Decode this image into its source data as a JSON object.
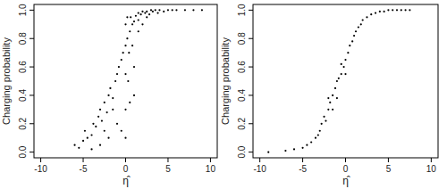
{
  "chart_data": [
    {
      "type": "scatter",
      "x_label": "η̂",
      "y_label": "Charging probability",
      "color": "#000000",
      "x": [
        -6,
        -5.5,
        -5,
        -4.8,
        -4.5,
        -4,
        -3.8,
        -3.5,
        -3.2,
        -3,
        -2.8,
        -2.5,
        -2.2,
        -2,
        -1.8,
        -1.5,
        -1.2,
        -1,
        -0.8,
        -0.5,
        -0.3,
        0,
        0,
        0,
        0.2,
        0.3,
        0.5,
        0.6,
        0.8,
        1,
        1,
        1.2,
        1.5,
        1.5,
        1.8,
        2,
        2,
        2.3,
        2.5,
        2.8,
        3,
        3.2,
        3.5,
        3.8,
        4,
        4.5,
        5,
        5.5,
        6,
        7,
        8,
        9,
        -1,
        -0.5,
        0,
        0,
        0.5,
        1,
        -2,
        -3,
        -1.5,
        0.2,
        0.4,
        0.8,
        1.5,
        2.5,
        -4,
        -2.5
      ],
      "values": [
        0.05,
        0.03,
        0.08,
        0.15,
        0.1,
        0.12,
        0.2,
        0.18,
        0.25,
        0.3,
        0.22,
        0.35,
        0.28,
        0.4,
        0.45,
        0.38,
        0.5,
        0.55,
        0.6,
        0.65,
        0.7,
        0.3,
        0.75,
        0.9,
        0.8,
        0.5,
        0.85,
        0.95,
        0.9,
        0.92,
        0.6,
        0.96,
        0.98,
        0.85,
        0.97,
        0.99,
        0.9,
        0.98,
        0.99,
        0.97,
        1,
        0.99,
        1,
        0.98,
        1,
        0.99,
        1,
        1,
        1,
        1,
        1,
        1,
        0.2,
        0.15,
        0.1,
        0.55,
        0.35,
        0.4,
        0.1,
        0.05,
        0.3,
        0.95,
        0.7,
        0.75,
        0.93,
        0.95,
        0.02,
        0.15
      ],
      "xlim": [
        -10.8,
        10.8
      ],
      "ylim": [
        -0.04,
        1.04
      ],
      "xticks": [
        -10,
        -5,
        0,
        5,
        10
      ],
      "yticks": [
        {
          "value": 0,
          "label": "0.0"
        },
        0.2,
        0.4,
        0.6,
        0.8,
        {
          "value": 1,
          "label": "1.0"
        }
      ]
    },
    {
      "type": "scatter",
      "x_label": "η̂",
      "y_label": "Charging probability",
      "color": "#000000",
      "x": [
        -9,
        -7,
        -6,
        -5,
        -4.5,
        -4,
        -3.5,
        -3.2,
        -3,
        -2.8,
        -2.5,
        -2.3,
        -2,
        -2,
        -1.8,
        -1.5,
        -1.5,
        -1.2,
        -1,
        -1,
        -0.8,
        -0.5,
        -0.5,
        -0.2,
        0,
        0,
        0.3,
        0.5,
        0.8,
        1,
        1.2,
        1.5,
        1.8,
        2,
        2.5,
        3,
        3.5,
        4,
        4.5,
        5,
        5.5,
        6,
        6.5,
        7,
        7.5
      ],
      "values": [
        0,
        0.01,
        0.02,
        0.03,
        0.05,
        0.07,
        0.1,
        0.12,
        0.15,
        0.2,
        0.25,
        0.22,
        0.3,
        0.38,
        0.35,
        0.4,
        0.3,
        0.45,
        0.5,
        0.38,
        0.52,
        0.55,
        0.62,
        0.6,
        0.65,
        0.55,
        0.7,
        0.75,
        0.78,
        0.82,
        0.85,
        0.88,
        0.9,
        0.93,
        0.95,
        0.97,
        0.98,
        0.99,
        0.99,
        1,
        1,
        1,
        1,
        1,
        1
      ],
      "xlim": [
        -10.8,
        10.8
      ],
      "ylim": [
        -0.04,
        1.04
      ],
      "xticks": [
        -10,
        -5,
        0,
        5,
        10
      ],
      "yticks": [
        {
          "value": 0,
          "label": "0.0"
        },
        0.2,
        0.4,
        0.6,
        0.8,
        {
          "value": 1,
          "label": "1.0"
        }
      ]
    }
  ]
}
